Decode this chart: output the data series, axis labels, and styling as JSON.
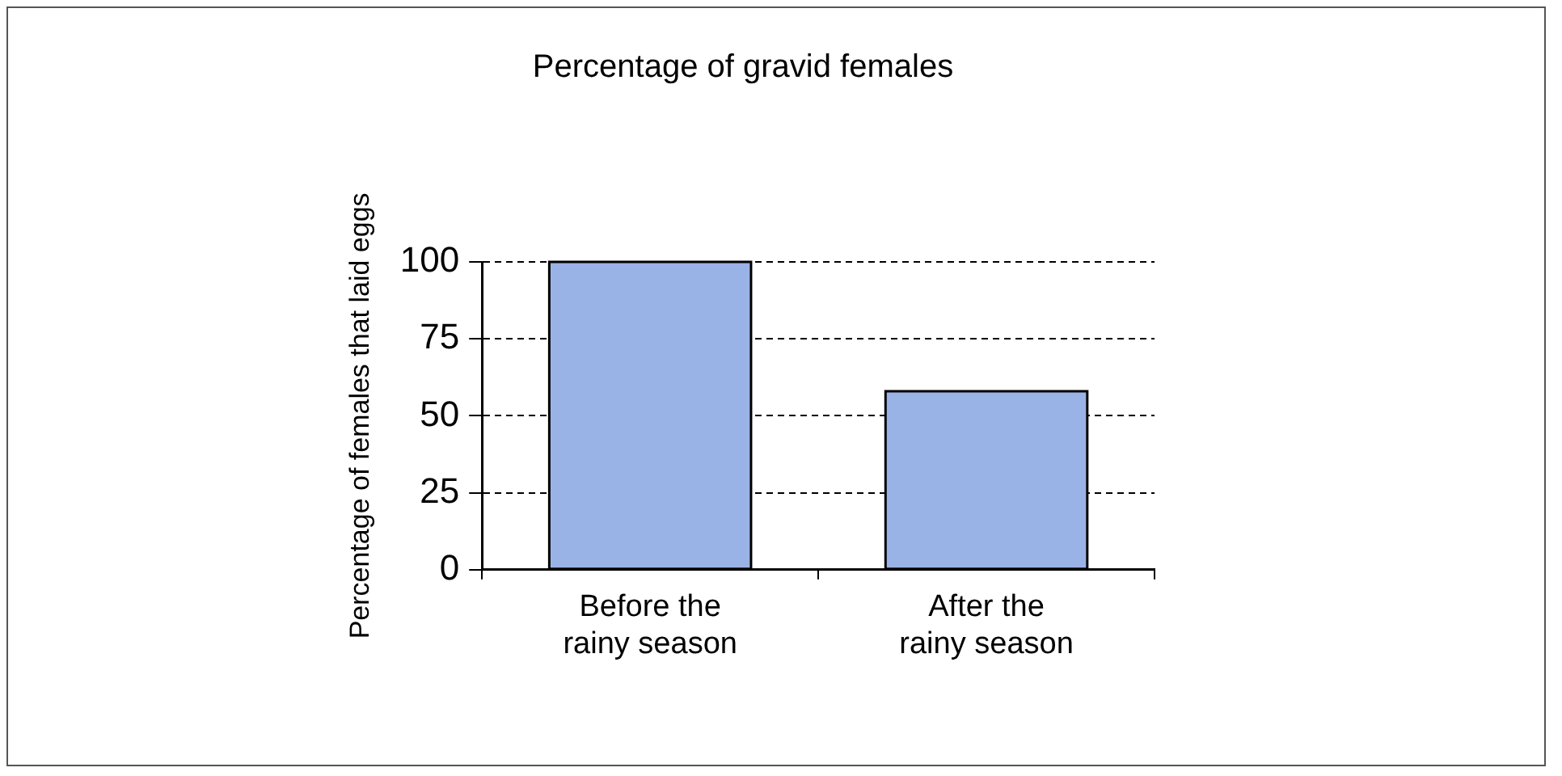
{
  "chart_data": {
    "type": "bar",
    "title": "Percentage of gravid females",
    "ylabel": "Percentage of females that laid eggs",
    "categories": [
      "Before the rainy season",
      "After the rainy season"
    ],
    "values": [
      100,
      58
    ],
    "color": "#99b3e6",
    "ylim": [
      0,
      100
    ],
    "yticks": [
      0,
      25,
      50,
      75,
      100
    ],
    "grid": "y"
  }
}
